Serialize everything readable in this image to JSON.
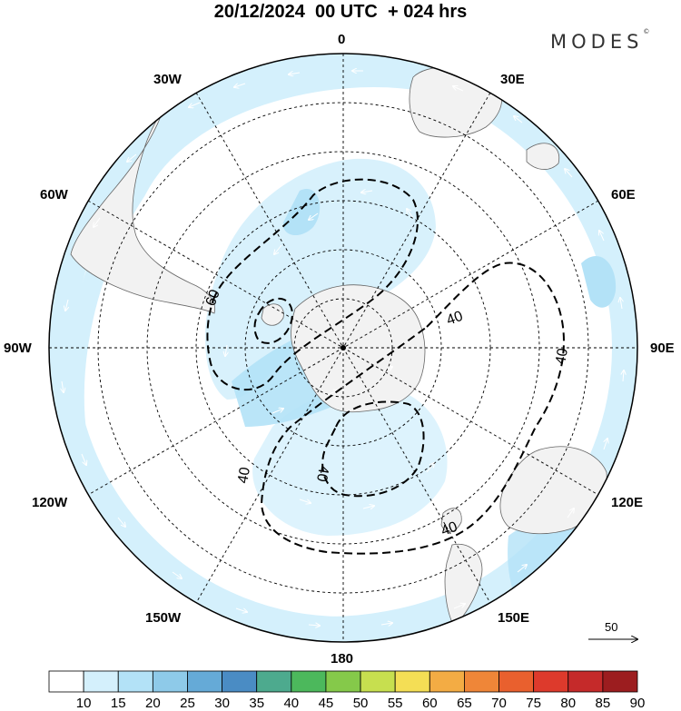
{
  "title": "20/12/2024  00 UTC  + 024 hrs",
  "brand": "MODES",
  "brand_mark": "©",
  "longitude_labels": {
    "n": "0",
    "e30": "30E",
    "e60": "60E",
    "e90": "90E",
    "e120": "120E",
    "e150": "150E",
    "s": "180",
    "w150": "150W",
    "w120": "120W",
    "w90": "90W",
    "w60": "60W",
    "w30": "30W"
  },
  "contour_labels": [
    "60",
    "40",
    "40",
    "40",
    "40",
    "40"
  ],
  "reference_vector": {
    "label": "50"
  },
  "colorbar": {
    "labels": [
      "10",
      "15",
      "20",
      "25",
      "30",
      "35",
      "40",
      "45",
      "50",
      "55",
      "60",
      "65",
      "70",
      "75",
      "80",
      "85",
      "90"
    ],
    "colors": [
      "#ffffff",
      "#d4f0fc",
      "#b3e2f7",
      "#8ecae9",
      "#65aad7",
      "#4a8cc4",
      "#4daa8e",
      "#4cb85c",
      "#85c94a",
      "#c7df4f",
      "#f4de55",
      "#f3ac44",
      "#ef8638",
      "#e9602e",
      "#dd3a2c",
      "#c52a2a",
      "#9c1d1f"
    ]
  }
}
